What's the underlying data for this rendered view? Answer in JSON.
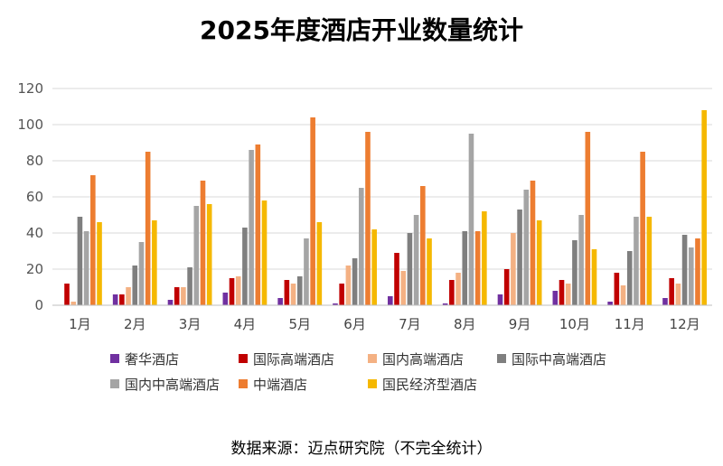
{
  "chart_data": {
    "type": "bar",
    "title": "2025年度酒店开业数量统计",
    "xlabel": "",
    "ylabel": "",
    "ylim": [
      0,
      120
    ],
    "yticks": [
      0,
      20,
      40,
      60,
      80,
      100,
      120
    ],
    "grid": true,
    "legend_position": "bottom",
    "categories": [
      "1月",
      "2月",
      "3月",
      "4月",
      "5月",
      "6月",
      "7月",
      "8月",
      "9月",
      "10月",
      "11月",
      "12月"
    ],
    "series": [
      {
        "name": "奢华酒店",
        "color": "#7030a0",
        "values": [
          0,
          6,
          3,
          7,
          4,
          1,
          5,
          1,
          6,
          8,
          2,
          4
        ]
      },
      {
        "name": "国际高端酒店",
        "color": "#c00000",
        "values": [
          12,
          6,
          10,
          15,
          14,
          12,
          29,
          14,
          20,
          14,
          18,
          15
        ]
      },
      {
        "name": "国内高端酒店",
        "color": "#f4b183",
        "values": [
          2,
          10,
          10,
          16,
          12,
          22,
          19,
          18,
          40,
          12,
          11,
          12
        ]
      },
      {
        "name": "国际中高端酒店",
        "color": "#7f7f7f",
        "values": [
          49,
          22,
          21,
          43,
          16,
          26,
          40,
          41,
          53,
          36,
          30,
          39
        ]
      },
      {
        "name": "国内中高端酒店",
        "color": "#a5a5a5",
        "values": [
          41,
          35,
          55,
          86,
          37,
          65,
          50,
          95,
          64,
          50,
          49,
          32
        ]
      },
      {
        "name": "中端酒店",
        "color": "#ed7d31",
        "values": [
          72,
          85,
          69,
          89,
          104,
          96,
          66,
          41,
          69,
          96,
          85,
          37
        ]
      },
      {
        "name": "国民经济型酒店",
        "color": "#f5b800",
        "values": [
          46,
          47,
          56,
          58,
          46,
          42,
          37,
          52,
          47,
          31,
          49,
          108
        ]
      }
    ]
  },
  "footer": {
    "source": "数据来源：迈点研究院（不完全统计）"
  }
}
